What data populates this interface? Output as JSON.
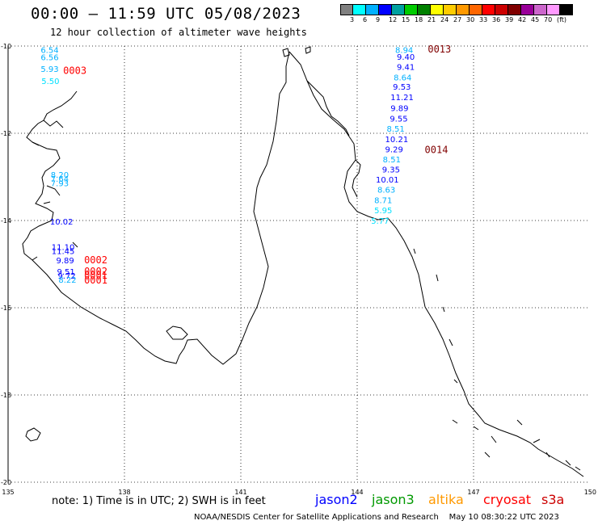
{
  "header": {
    "title": "00:00 – 11:59 UTC 05/08/2023",
    "subtitle": "12 hour collection of altimeter wave heights"
  },
  "legend": {
    "colors": [
      "#808080",
      "#00ffff",
      "#00b0ff",
      "#0000ff",
      "#00a0a0",
      "#00cc00",
      "#008000",
      "#ffff00",
      "#ffcc00",
      "#ff9900",
      "#ff6600",
      "#ff0000",
      "#cc0000",
      "#800000",
      "#990099",
      "#cc66cc",
      "#ff99ff",
      "#000000"
    ],
    "labels": [
      "3",
      "6",
      "9",
      "12",
      "15",
      "18",
      "21",
      "24",
      "27",
      "30",
      "33",
      "36",
      "39",
      "42",
      "45",
      "70",
      "(ft)"
    ]
  },
  "map": {
    "lon_ticks": [
      "135",
      "138",
      "141",
      "144",
      "147",
      "150"
    ],
    "lat_ticks": [
      "-10",
      "-12",
      "-14",
      "-16",
      "-18",
      "-20"
    ],
    "lon_range": [
      135,
      150
    ],
    "lat_range": [
      -20,
      -10
    ],
    "observations": [
      {
        "text": "6.54",
        "lon": 135.84,
        "lat": -10.08,
        "color": "#00b0ff"
      },
      {
        "text": "6.56",
        "lon": 135.84,
        "lat": -10.25,
        "color": "#00b0ff"
      },
      {
        "text": "5.93",
        "lon": 135.84,
        "lat": -10.52,
        "color": "#00b0ff"
      },
      {
        "text": "5.50",
        "lon": 135.86,
        "lat": -10.8,
        "color": "#00e0ff"
      },
      {
        "text": "8.20",
        "lon": 136.1,
        "lat": -12.94,
        "color": "#00b0ff"
      },
      {
        "text": "7.64",
        "lon": 136.1,
        "lat": -13.04,
        "color": "#00b0ff"
      },
      {
        "text": "7.93",
        "lon": 136.1,
        "lat": -13.14,
        "color": "#00b0ff"
      },
      {
        "text": "10.02",
        "lon": 136.08,
        "lat": -14.02,
        "color": "#0000ff"
      },
      {
        "text": "11.10",
        "lon": 136.12,
        "lat": -14.6,
        "color": "#0000ff"
      },
      {
        "text": "11.45",
        "lon": 136.12,
        "lat": -14.69,
        "color": "#0000ff"
      },
      {
        "text": "9.89",
        "lon": 136.24,
        "lat": -14.91,
        "color": "#0000ff"
      },
      {
        "text": "9.51",
        "lon": 136.26,
        "lat": -15.17,
        "color": "#0000ff"
      },
      {
        "text": "9.72",
        "lon": 136.28,
        "lat": -15.26,
        "color": "#0000ff"
      },
      {
        "text": "8.22",
        "lon": 136.3,
        "lat": -15.35,
        "color": "#00b0ff"
      },
      {
        "text": "8.94",
        "lon": 144.98,
        "lat": -10.08,
        "color": "#00b0ff"
      },
      {
        "text": "9.40",
        "lon": 145.02,
        "lat": -10.24,
        "color": "#0000ff"
      },
      {
        "text": "9.41",
        "lon": 145.02,
        "lat": -10.47,
        "color": "#0000ff"
      },
      {
        "text": "8.64",
        "lon": 144.94,
        "lat": -10.71,
        "color": "#00b0ff"
      },
      {
        "text": "9.53",
        "lon": 144.92,
        "lat": -10.93,
        "color": "#0000ff"
      },
      {
        "text": "11.21",
        "lon": 144.86,
        "lat": -11.17,
        "color": "#0000ff"
      },
      {
        "text": "9.89",
        "lon": 144.86,
        "lat": -11.42,
        "color": "#0000ff"
      },
      {
        "text": "9.55",
        "lon": 144.84,
        "lat": -11.66,
        "color": "#0000ff"
      },
      {
        "text": "8.51",
        "lon": 144.76,
        "lat": -11.89,
        "color": "#00b0ff"
      },
      {
        "text": "10.21",
        "lon": 144.72,
        "lat": -12.13,
        "color": "#0000ff"
      },
      {
        "text": "9.29",
        "lon": 144.72,
        "lat": -12.36,
        "color": "#0000ff"
      },
      {
        "text": "8.51",
        "lon": 144.66,
        "lat": -12.59,
        "color": "#00b0ff"
      },
      {
        "text": "9.35",
        "lon": 144.64,
        "lat": -12.82,
        "color": "#0000ff"
      },
      {
        "text": "10.01",
        "lon": 144.48,
        "lat": -13.06,
        "color": "#0000ff"
      },
      {
        "text": "8.63",
        "lon": 144.52,
        "lat": -13.29,
        "color": "#00b0ff"
      },
      {
        "text": "8.71",
        "lon": 144.44,
        "lat": -13.53,
        "color": "#00b0ff"
      },
      {
        "text": "5.95",
        "lon": 144.44,
        "lat": -13.76,
        "color": "#00e0ff"
      },
      {
        "text": "5.77",
        "lon": 144.36,
        "lat": -14.0,
        "color": "#00e0ff"
      }
    ],
    "pass_times": [
      {
        "text": "0003",
        "lon": 136.42,
        "lat": -10.55,
        "color": "#ff0000"
      },
      {
        "text": "0002",
        "lon": 136.96,
        "lat": -14.89,
        "color": "#ff0000"
      },
      {
        "text": "0002",
        "lon": 136.96,
        "lat": -15.15,
        "color": "#ff0000"
      },
      {
        "text": "0001",
        "lon": 136.96,
        "lat": -15.24,
        "color": "#ff0000"
      },
      {
        "text": "0001",
        "lon": 136.96,
        "lat": -15.35,
        "color": "#ff0000"
      },
      {
        "text": "0013",
        "lon": 145.82,
        "lat": -10.06,
        "color": "#800000"
      },
      {
        "text": "0014",
        "lon": 145.74,
        "lat": -12.36,
        "color": "#800000"
      }
    ]
  },
  "note": "note: 1) Time is in UTC; 2) SWH is in feet",
  "satellites": [
    {
      "name": "jason2",
      "color": "#0000ff"
    },
    {
      "name": "jason3",
      "color": "#009900"
    },
    {
      "name": "altika",
      "color": "#ff9900"
    },
    {
      "name": "cryosat",
      "color": "#ff0000"
    },
    {
      "name": "s3a",
      "color": "#cc0000"
    }
  ],
  "footer": "NOAA/NESDIS Center for Satellite Applications and Research    May 10 08:30:22 UTC 2023"
}
